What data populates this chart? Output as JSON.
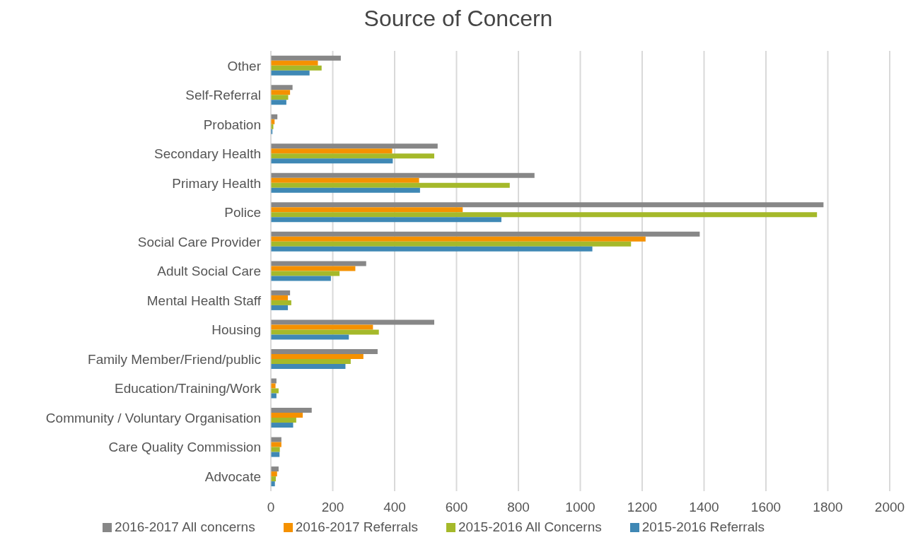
{
  "chart_data": {
    "type": "bar",
    "orientation": "horizontal",
    "title": "Source of Concern",
    "categories": [
      "Other",
      "Self-Referral",
      "Probation",
      "Secondary Health",
      "Primary Health",
      "Police",
      "Social Care Provider",
      "Adult Social Care",
      "Mental Health Staff",
      "Housing",
      "Family Member/Friend/public",
      "Education/Training/Work",
      "Community / Voluntary Organisation",
      "Care Quality Commission",
      "Advocate"
    ],
    "series": [
      {
        "name": "2016-2017 All concerns",
        "color": "#878787",
        "values": [
          226,
          70,
          21,
          539,
          852,
          1786,
          1386,
          308,
          62,
          528,
          345,
          18,
          132,
          34,
          25
        ]
      },
      {
        "name": "2016-2017 Referrals",
        "color": "#f59100",
        "values": [
          152,
          62,
          12,
          392,
          479,
          620,
          1211,
          273,
          55,
          330,
          299,
          15,
          103,
          34,
          20
        ]
      },
      {
        "name": "2015-2016 All Concerns",
        "color": "#a5b92a",
        "values": [
          164,
          56,
          8,
          528,
          772,
          1765,
          1164,
          222,
          66,
          349,
          258,
          25,
          82,
          29,
          16
        ]
      },
      {
        "name": "2015-2016 Referrals",
        "color": "#3f88b5",
        "values": [
          125,
          50,
          5,
          394,
          482,
          745,
          1039,
          194,
          55,
          252,
          241,
          18,
          72,
          28,
          13
        ]
      }
    ],
    "xlim": [
      0,
      2000
    ],
    "xticks": [
      0,
      200,
      400,
      600,
      800,
      1000,
      1200,
      1400,
      1600,
      1800,
      2000
    ],
    "grid": "x",
    "legend": "bottom"
  }
}
